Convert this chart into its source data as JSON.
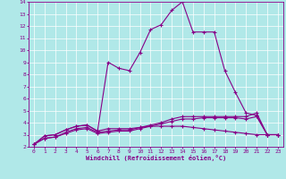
{
  "xlabel": "Windchill (Refroidissement éolien,°C)",
  "x": [
    0,
    1,
    2,
    3,
    4,
    5,
    6,
    7,
    8,
    9,
    10,
    11,
    12,
    13,
    14,
    15,
    16,
    17,
    18,
    19,
    20,
    21,
    22,
    23
  ],
  "line1": [
    2.2,
    2.9,
    3.0,
    3.4,
    3.7,
    3.8,
    3.3,
    9.0,
    8.5,
    8.3,
    9.8,
    11.7,
    12.1,
    13.3,
    14.0,
    11.5,
    11.5,
    11.5,
    8.3,
    6.5,
    4.8,
    4.6,
    3.0,
    3.0
  ],
  "line2": [
    2.2,
    2.9,
    3.0,
    3.4,
    3.7,
    3.8,
    3.3,
    3.5,
    3.5,
    3.5,
    3.6,
    3.7,
    3.7,
    3.7,
    3.7,
    3.6,
    3.5,
    3.4,
    3.3,
    3.2,
    3.1,
    3.0,
    3.0,
    3.0
  ],
  "line3": [
    2.2,
    2.7,
    2.8,
    3.2,
    3.5,
    3.6,
    3.2,
    3.3,
    3.4,
    3.4,
    3.6,
    3.8,
    4.0,
    4.3,
    4.5,
    4.5,
    4.5,
    4.5,
    4.5,
    4.5,
    4.5,
    4.8,
    3.0,
    3.0
  ],
  "line4": [
    2.2,
    2.7,
    2.8,
    3.1,
    3.4,
    3.5,
    3.1,
    3.2,
    3.3,
    3.3,
    3.5,
    3.7,
    3.9,
    4.1,
    4.3,
    4.3,
    4.4,
    4.4,
    4.4,
    4.4,
    4.3,
    4.5,
    3.0,
    3.0
  ],
  "line_color": "#880088",
  "bg_color": "#b0e8e8",
  "grid_color": "#ffffff",
  "xlim": [
    -0.5,
    23.5
  ],
  "ylim": [
    2,
    14
  ],
  "yticks": [
    2,
    3,
    4,
    5,
    6,
    7,
    8,
    9,
    10,
    11,
    12,
    13,
    14
  ],
  "xticks": [
    0,
    1,
    2,
    3,
    4,
    5,
    6,
    7,
    8,
    9,
    10,
    11,
    12,
    13,
    14,
    15,
    16,
    17,
    18,
    19,
    20,
    21,
    22,
    23
  ]
}
